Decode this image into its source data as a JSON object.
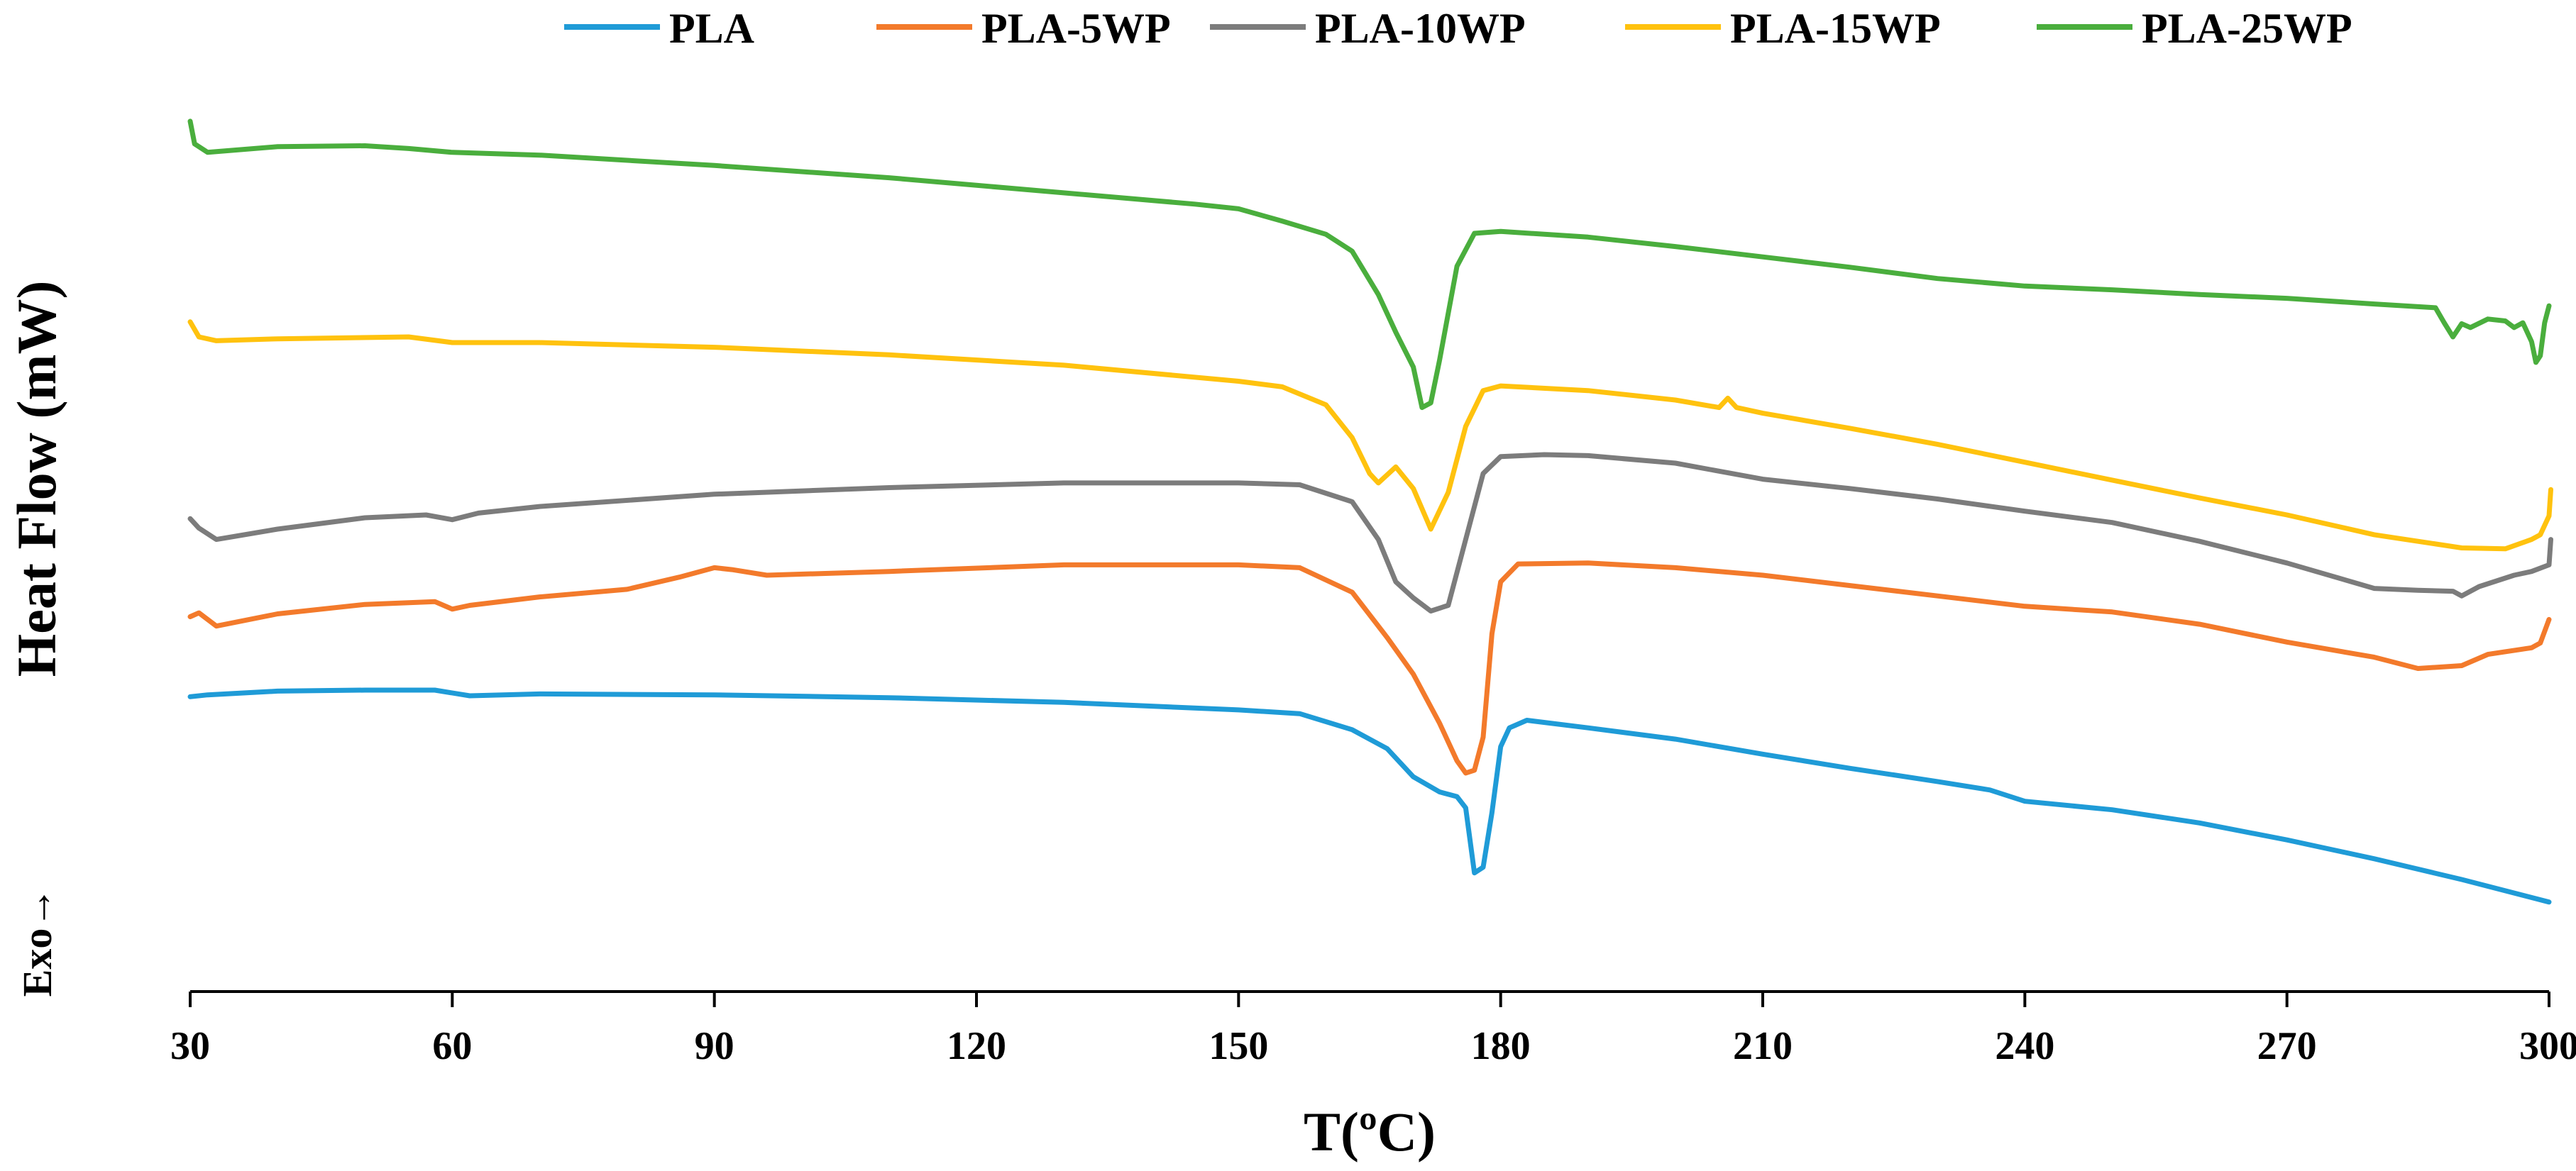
{
  "chart_data": {
    "type": "line",
    "title": "",
    "xlabel": "T(ºC)",
    "ylabel": "Heat Flow (mW)",
    "annotation": "Exo→",
    "xlim": [
      30,
      300
    ],
    "x_ticks": [
      "30",
      "60",
      "90",
      "120",
      "150",
      "180",
      "210",
      "240",
      "270",
      "300"
    ],
    "ylim": [
      0,
      100
    ],
    "y_units": "relative heat flow (curves vertically offset, no y scale shown)",
    "legend_position": "top",
    "grid": false,
    "series": [
      {
        "name": "PLA",
        "color": "#1f9bd7",
        "points": [
          [
            30,
            31.3
          ],
          [
            32,
            31.5
          ],
          [
            40,
            31.9
          ],
          [
            50,
            32.0
          ],
          [
            58,
            32.0
          ],
          [
            62,
            31.4
          ],
          [
            70,
            31.6
          ],
          [
            90,
            31.5
          ],
          [
            110,
            31.2
          ],
          [
            130,
            30.7
          ],
          [
            150,
            29.9
          ],
          [
            157,
            29.5
          ],
          [
            163,
            27.8
          ],
          [
            167,
            25.8
          ],
          [
            170,
            22.8
          ],
          [
            173,
            21.2
          ],
          [
            175,
            20.7
          ],
          [
            176,
            19.5
          ],
          [
            177,
            12.6
          ],
          [
            178,
            13.2
          ],
          [
            179,
            19.0
          ],
          [
            180,
            26.0
          ],
          [
            181,
            28.0
          ],
          [
            183,
            28.8
          ],
          [
            190,
            28.0
          ],
          [
            200,
            26.8
          ],
          [
            210,
            25.2
          ],
          [
            220,
            23.7
          ],
          [
            230,
            22.3
          ],
          [
            236,
            21.4
          ],
          [
            240,
            20.2
          ],
          [
            250,
            19.3
          ],
          [
            260,
            17.9
          ],
          [
            270,
            16.1
          ],
          [
            280,
            14.1
          ],
          [
            290,
            11.9
          ],
          [
            300,
            9.5
          ]
        ]
      },
      {
        "name": "PLA-5WP",
        "color": "#f37a2b",
        "points": [
          [
            30,
            39.8
          ],
          [
            31,
            40.2
          ],
          [
            33,
            38.8
          ],
          [
            40,
            40.1
          ],
          [
            50,
            41.1
          ],
          [
            58,
            41.4
          ],
          [
            60,
            40.6
          ],
          [
            62,
            41.0
          ],
          [
            70,
            41.9
          ],
          [
            80,
            42.7
          ],
          [
            86,
            44.0
          ],
          [
            90,
            45.0
          ],
          [
            92,
            44.8
          ],
          [
            96,
            44.2
          ],
          [
            110,
            44.6
          ],
          [
            130,
            45.3
          ],
          [
            150,
            45.3
          ],
          [
            157,
            45.0
          ],
          [
            163,
            42.4
          ],
          [
            167,
            37.6
          ],
          [
            170,
            33.7
          ],
          [
            173,
            28.5
          ],
          [
            175,
            24.5
          ],
          [
            176,
            23.2
          ],
          [
            177,
            23.5
          ],
          [
            178,
            27.0
          ],
          [
            179,
            38.0
          ],
          [
            180,
            43.5
          ],
          [
            182,
            45.4
          ],
          [
            190,
            45.5
          ],
          [
            200,
            45.0
          ],
          [
            210,
            44.2
          ],
          [
            220,
            43.1
          ],
          [
            230,
            42.0
          ],
          [
            240,
            40.9
          ],
          [
            250,
            40.3
          ],
          [
            260,
            39.0
          ],
          [
            270,
            37.1
          ],
          [
            280,
            35.5
          ],
          [
            285,
            34.3
          ],
          [
            290,
            34.6
          ],
          [
            293,
            35.8
          ],
          [
            298,
            36.5
          ],
          [
            299,
            37.0
          ],
          [
            300,
            39.5
          ]
        ]
      },
      {
        "name": "PLA-10WP",
        "color": "#7c7c7c",
        "points": [
          [
            30,
            50.2
          ],
          [
            31,
            49.2
          ],
          [
            33,
            48.0
          ],
          [
            40,
            49.1
          ],
          [
            50,
            50.3
          ],
          [
            57,
            50.6
          ],
          [
            60,
            50.1
          ],
          [
            63,
            50.8
          ],
          [
            70,
            51.5
          ],
          [
            90,
            52.8
          ],
          [
            110,
            53.5
          ],
          [
            130,
            54.0
          ],
          [
            150,
            54.0
          ],
          [
            157,
            53.8
          ],
          [
            163,
            52.0
          ],
          [
            166,
            48.0
          ],
          [
            168,
            43.5
          ],
          [
            170,
            41.8
          ],
          [
            172,
            40.4
          ],
          [
            174,
            41.0
          ],
          [
            176,
            48.0
          ],
          [
            178,
            55.0
          ],
          [
            180,
            56.8
          ],
          [
            185,
            57.0
          ],
          [
            190,
            56.9
          ],
          [
            200,
            56.1
          ],
          [
            210,
            54.4
          ],
          [
            220,
            53.4
          ],
          [
            230,
            52.3
          ],
          [
            240,
            51.0
          ],
          [
            250,
            49.8
          ],
          [
            260,
            47.8
          ],
          [
            270,
            45.5
          ],
          [
            280,
            42.8
          ],
          [
            285,
            42.6
          ],
          [
            289,
            42.5
          ],
          [
            290,
            42.0
          ],
          [
            292,
            43.0
          ],
          [
            296,
            44.2
          ],
          [
            298,
            44.6
          ],
          [
            300,
            45.3
          ],
          [
            300.2,
            48.0
          ]
        ]
      },
      {
        "name": "PLA-15WP",
        "color": "#ffc20e",
        "points": [
          [
            30,
            71.1
          ],
          [
            31,
            69.5
          ],
          [
            33,
            69.1
          ],
          [
            40,
            69.3
          ],
          [
            55,
            69.5
          ],
          [
            60,
            68.9
          ],
          [
            70,
            68.9
          ],
          [
            90,
            68.4
          ],
          [
            110,
            67.6
          ],
          [
            130,
            66.5
          ],
          [
            150,
            64.8
          ],
          [
            155,
            64.2
          ],
          [
            160,
            62.3
          ],
          [
            163,
            58.8
          ],
          [
            165,
            55.0
          ],
          [
            166,
            54.0
          ],
          [
            168,
            55.7
          ],
          [
            170,
            53.4
          ],
          [
            172,
            49.1
          ],
          [
            174,
            53.0
          ],
          [
            176,
            60.0
          ],
          [
            178,
            63.8
          ],
          [
            180,
            64.3
          ],
          [
            190,
            63.8
          ],
          [
            200,
            62.8
          ],
          [
            205,
            62.0
          ],
          [
            206,
            63.0
          ],
          [
            207,
            62.0
          ],
          [
            210,
            61.4
          ],
          [
            220,
            59.8
          ],
          [
            230,
            58.1
          ],
          [
            240,
            56.2
          ],
          [
            250,
            54.3
          ],
          [
            260,
            52.4
          ],
          [
            270,
            50.6
          ],
          [
            280,
            48.5
          ],
          [
            290,
            47.1
          ],
          [
            295,
            47.0
          ],
          [
            298,
            48.0
          ],
          [
            299,
            48.5
          ],
          [
            300,
            50.5
          ],
          [
            300.2,
            53.3
          ]
        ]
      },
      {
        "name": "PLA-25WP",
        "color": "#4aae3d",
        "points": [
          [
            30,
            92.4
          ],
          [
            30.5,
            90.0
          ],
          [
            32,
            89.1
          ],
          [
            40,
            89.7
          ],
          [
            50,
            89.8
          ],
          [
            55,
            89.5
          ],
          [
            60,
            89.1
          ],
          [
            70,
            88.8
          ],
          [
            90,
            87.7
          ],
          [
            110,
            86.4
          ],
          [
            130,
            84.8
          ],
          [
            145,
            83.6
          ],
          [
            150,
            83.1
          ],
          [
            155,
            81.8
          ],
          [
            160,
            80.4
          ],
          [
            163,
            78.6
          ],
          [
            166,
            74.0
          ],
          [
            168,
            70.0
          ],
          [
            170,
            66.3
          ],
          [
            171,
            62.0
          ],
          [
            172,
            62.5
          ],
          [
            173,
            67.0
          ],
          [
            175,
            77.0
          ],
          [
            177,
            80.5
          ],
          [
            180,
            80.7
          ],
          [
            190,
            80.1
          ],
          [
            200,
            79.1
          ],
          [
            210,
            78.0
          ],
          [
            220,
            76.9
          ],
          [
            230,
            75.7
          ],
          [
            240,
            74.9
          ],
          [
            250,
            74.5
          ],
          [
            260,
            74.0
          ],
          [
            270,
            73.6
          ],
          [
            280,
            73.0
          ],
          [
            287,
            72.6
          ],
          [
            288,
            71.0
          ],
          [
            289,
            69.5
          ],
          [
            290,
            70.9
          ],
          [
            291,
            70.5
          ],
          [
            293,
            71.4
          ],
          [
            295,
            71.2
          ],
          [
            296,
            70.5
          ],
          [
            297,
            71.0
          ],
          [
            298,
            69.0
          ],
          [
            298.5,
            66.8
          ],
          [
            299,
            67.5
          ],
          [
            299.5,
            71.0
          ],
          [
            300,
            72.8
          ]
        ]
      }
    ]
  }
}
